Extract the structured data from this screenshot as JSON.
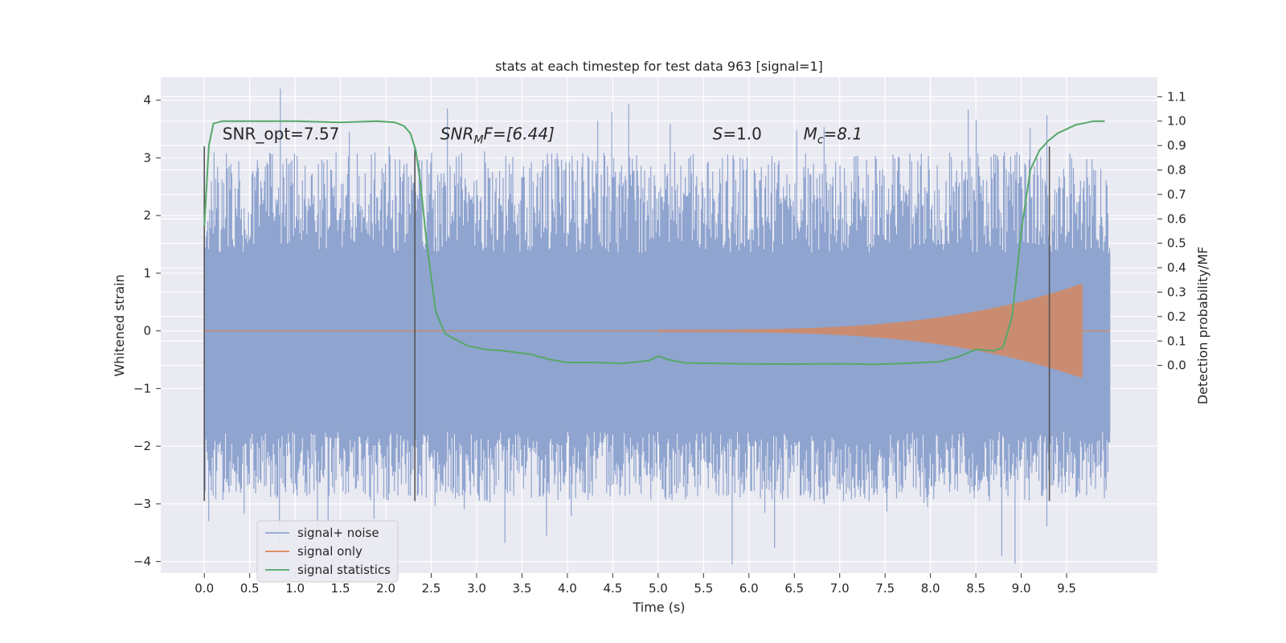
{
  "chart_data": {
    "type": "line",
    "title": "stats at each timestep for test data 963 [signal=1]",
    "xlabel": "Time (s)",
    "ylabel": "Whitened strain",
    "ylabel_right": "Detection probability/MF",
    "xlim": [
      -0.48,
      10.5
    ],
    "ylim": [
      -4.2,
      4.4
    ],
    "ylim_right": [
      -0.85,
      1.18
    ],
    "x_ticks": [
      0.0,
      0.5,
      1.0,
      1.5,
      2.0,
      2.5,
      3.0,
      3.5,
      4.0,
      4.5,
      5.0,
      5.5,
      6.0,
      6.5,
      7.0,
      7.5,
      8.0,
      8.5,
      9.0,
      9.5
    ],
    "x_tick_labels": [
      "0.0",
      "0.5",
      "1.0",
      "1.5",
      "2.0",
      "2.5",
      "3.0",
      "3.5",
      "4.0",
      "4.5",
      "5.0",
      "5.5",
      "6.0",
      "6.5",
      "7.0",
      "7.5",
      "8.0",
      "8.5",
      "9.0",
      "9.5"
    ],
    "y_ticks": [
      4,
      3,
      2,
      1,
      0,
      -1,
      -2,
      -3,
      -4
    ],
    "y_tick_labels": [
      "4",
      "3",
      "2",
      "1",
      "0",
      "−1",
      "−2",
      "−3",
      "−4"
    ],
    "y_right_ticks": [
      1.1,
      1.0,
      0.9,
      0.8,
      0.7,
      0.6,
      0.5,
      0.4,
      0.3,
      0.2,
      0.1,
      0.0
    ],
    "y_right_tick_labels": [
      "1.1",
      "1.0",
      "0.9",
      "0.8",
      "0.7",
      "0.6",
      "0.5",
      "0.4",
      "0.3",
      "0.2",
      "0.1",
      "0.0"
    ],
    "grid": true,
    "legend_position": "bottom-left",
    "colors": {
      "noise": "#8fa4cf",
      "signal": "#dd8452",
      "stats": "#55a868",
      "vline": "#555555",
      "background": "#eaeaf2",
      "grid": "#ffffff"
    },
    "series": [
      {
        "name": "signal+ noise",
        "kind": "filled_band",
        "x_range": [
          0.0,
          9.98
        ],
        "core_band": [
          -1.75,
          1.35
        ],
        "typical_peak": 2.6,
        "typical_trough": -2.5
      },
      {
        "name": "signal only",
        "kind": "chirp",
        "x_start": 5.0,
        "x_peak": 9.67,
        "peak_amplitude": 0.8,
        "ringdown_end": 9.75
      },
      {
        "name": "signal statistics",
        "kind": "line",
        "axis": "right",
        "x": [
          0.0,
          0.05,
          0.1,
          0.2,
          0.5,
          1.0,
          1.5,
          1.9,
          2.1,
          2.2,
          2.27,
          2.33,
          2.38,
          2.45,
          2.55,
          2.65,
          2.75,
          2.9,
          3.1,
          3.3,
          3.6,
          3.8,
          4.0,
          4.3,
          4.6,
          4.9,
          5.0,
          5.1,
          5.3,
          6.0,
          6.5,
          7.0,
          7.4,
          7.8,
          8.1,
          8.3,
          8.5,
          8.7,
          8.8,
          8.9,
          9.0,
          9.1,
          9.2,
          9.3,
          9.4,
          9.6,
          9.8,
          9.92
        ],
        "y": [
          0.57,
          0.9,
          0.99,
          1.0,
          1.0,
          1.0,
          0.995,
          1.0,
          0.995,
          0.98,
          0.95,
          0.88,
          0.75,
          0.5,
          0.22,
          0.13,
          0.11,
          0.08,
          0.065,
          0.06,
          0.045,
          0.025,
          0.012,
          0.012,
          0.008,
          0.02,
          0.038,
          0.025,
          0.01,
          0.006,
          0.005,
          0.007,
          0.004,
          0.01,
          0.015,
          0.035,
          0.065,
          0.06,
          0.075,
          0.2,
          0.55,
          0.8,
          0.88,
          0.92,
          0.95,
          0.985,
          1.0,
          1.0
        ]
      }
    ],
    "vlines": [
      0.0,
      2.32,
      9.31
    ],
    "vline_range": [
      -2.95,
      3.2
    ],
    "annotations": [
      {
        "text": "SNR_opt=7.57",
        "x": 0.2,
        "y": 3.32
      },
      {
        "text": "SNR",
        "sub": "M",
        "suffix": "F=[6.44]",
        "italic": true,
        "x": 2.6,
        "y": 3.32
      },
      {
        "text": "S",
        "suffix": "=1.0",
        "italic": true,
        "x": 5.6,
        "y": 3.32
      },
      {
        "text": "M",
        "sub": "c",
        "suffix": "=8.1",
        "italic": true,
        "x": 6.6,
        "y": 3.32
      }
    ]
  }
}
